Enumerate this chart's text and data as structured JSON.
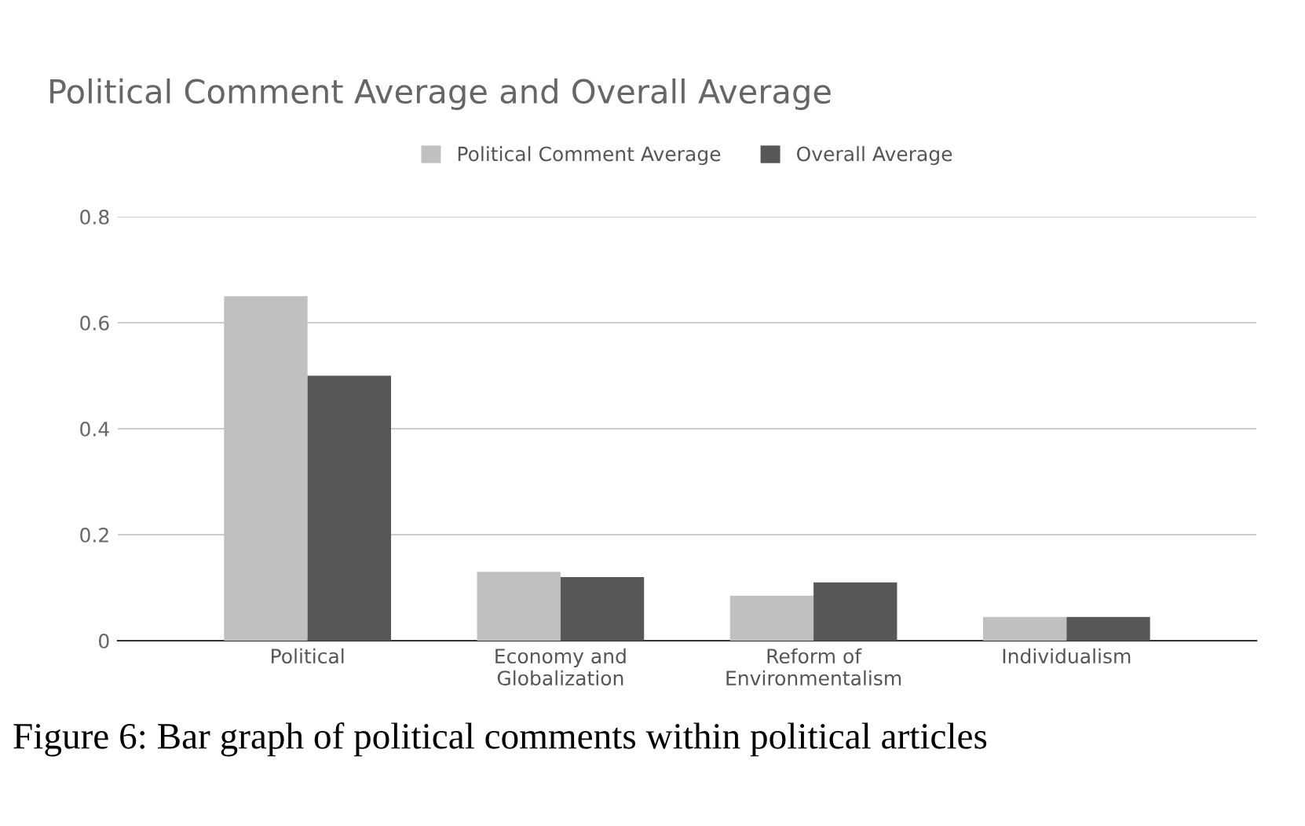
{
  "chart_data": {
    "type": "bar",
    "title": "Political Comment Average and Overall Average",
    "categories": [
      "Political",
      "Economy and\nGlobalization",
      "Reform of\nEnvironmentalism",
      "Individualism"
    ],
    "series": [
      {
        "name": "Political Comment Average",
        "color": "#c0c0c0",
        "values": [
          0.65,
          0.13,
          0.085,
          0.045
        ]
      },
      {
        "name": "Overall Average",
        "color": "#575757",
        "values": [
          0.5,
          0.12,
          0.11,
          0.045
        ]
      }
    ],
    "ylim": [
      0,
      0.8
    ],
    "yticks": [
      0,
      0.2,
      0.4,
      0.6,
      0.8
    ],
    "grid": "y",
    "legend": "top",
    "annotations": [
      "Figure 6: Bar graph of political comments within political articles"
    ]
  }
}
